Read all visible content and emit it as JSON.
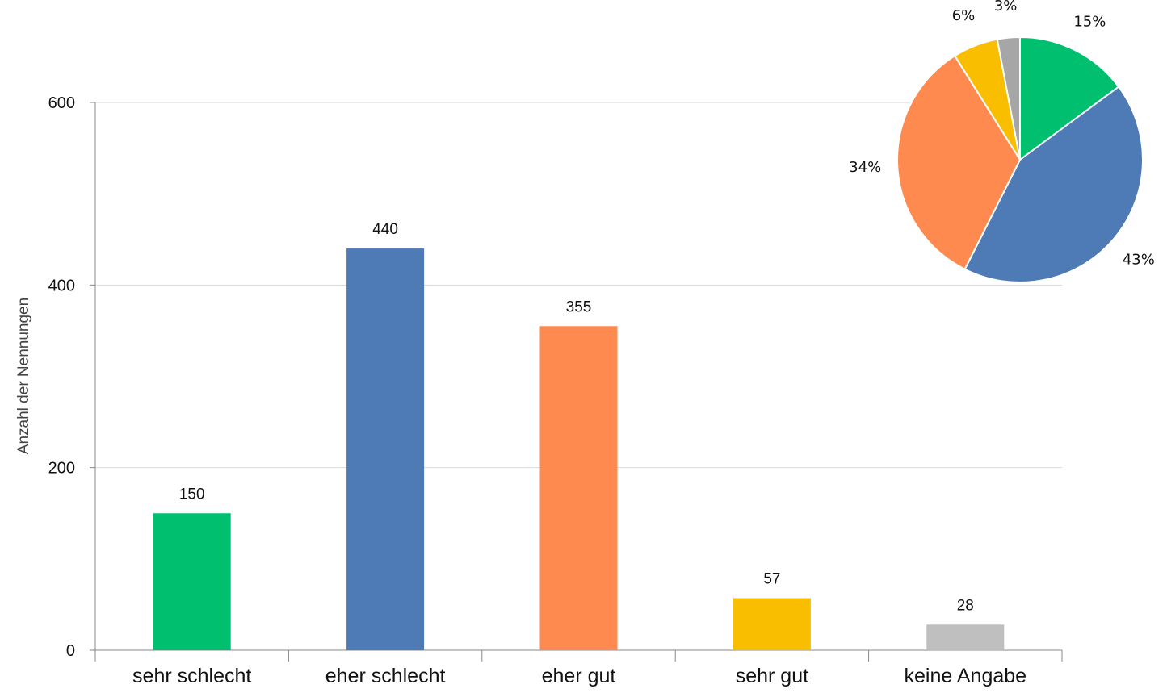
{
  "chart_data": [
    {
      "type": "bar",
      "ylabel": "Anzahl der Nennungen",
      "ylim": [
        0,
        600
      ],
      "yticks": [
        0,
        200,
        400,
        600
      ],
      "grid": true,
      "categories": [
        "sehr schlecht",
        "eher schlecht",
        "eher gut",
        "sehr gut",
        "keine Angabe"
      ],
      "values": [
        150,
        440,
        355,
        57,
        28
      ],
      "colors": [
        "#00BF6F",
        "#4E7AB5",
        "#FF8A4F",
        "#F9BE00",
        "#BFBFBF"
      ]
    },
    {
      "type": "pie",
      "categories": [
        "sehr schlecht",
        "eher schlecht",
        "eher gut",
        "sehr gut",
        "keine Angabe"
      ],
      "values": [
        15,
        43,
        34,
        6,
        3
      ],
      "labels": [
        "15%",
        "43%",
        "34%",
        "6%",
        "3%"
      ],
      "colors": [
        "#00BF6F",
        "#4E7AB5",
        "#FF8A4F",
        "#F9BE00",
        "#A6A6A6"
      ]
    }
  ]
}
